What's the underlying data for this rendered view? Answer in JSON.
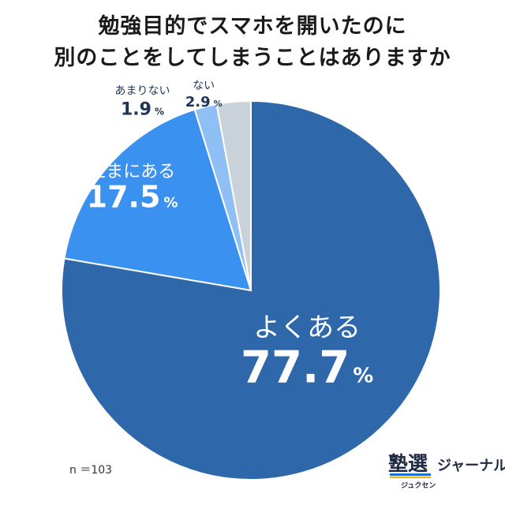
{
  "title_lines": [
    "勉強目的でスマホを開いたのに",
    "別のことをしてしまうことはありますか"
  ],
  "n_label": "n ＝103",
  "logo": {
    "mark": "塾選",
    "kana": "ジュクセン",
    "brand": "ジャーナル"
  },
  "chart_data": {
    "type": "pie",
    "title": "勉強目的でスマホを開いたのに別のことをしてしまうことはありますか",
    "unit": "%",
    "start": "12 o'clock",
    "direction": "clockwise",
    "slices": [
      {
        "label": "よくある",
        "value": 77.7,
        "color": "#2e67aa",
        "text_color": "#ffffff"
      },
      {
        "label": "たまにある",
        "value": 17.5,
        "color": "#3a91f0",
        "text_color": "#ffffff"
      },
      {
        "label": "あまりない",
        "value": 1.9,
        "color": "#8fc0f5",
        "text_color": "#1f3556"
      },
      {
        "label": "ない",
        "value": 2.9,
        "color": "#c9d2d9",
        "text_color": "#1f3556"
      }
    ]
  }
}
